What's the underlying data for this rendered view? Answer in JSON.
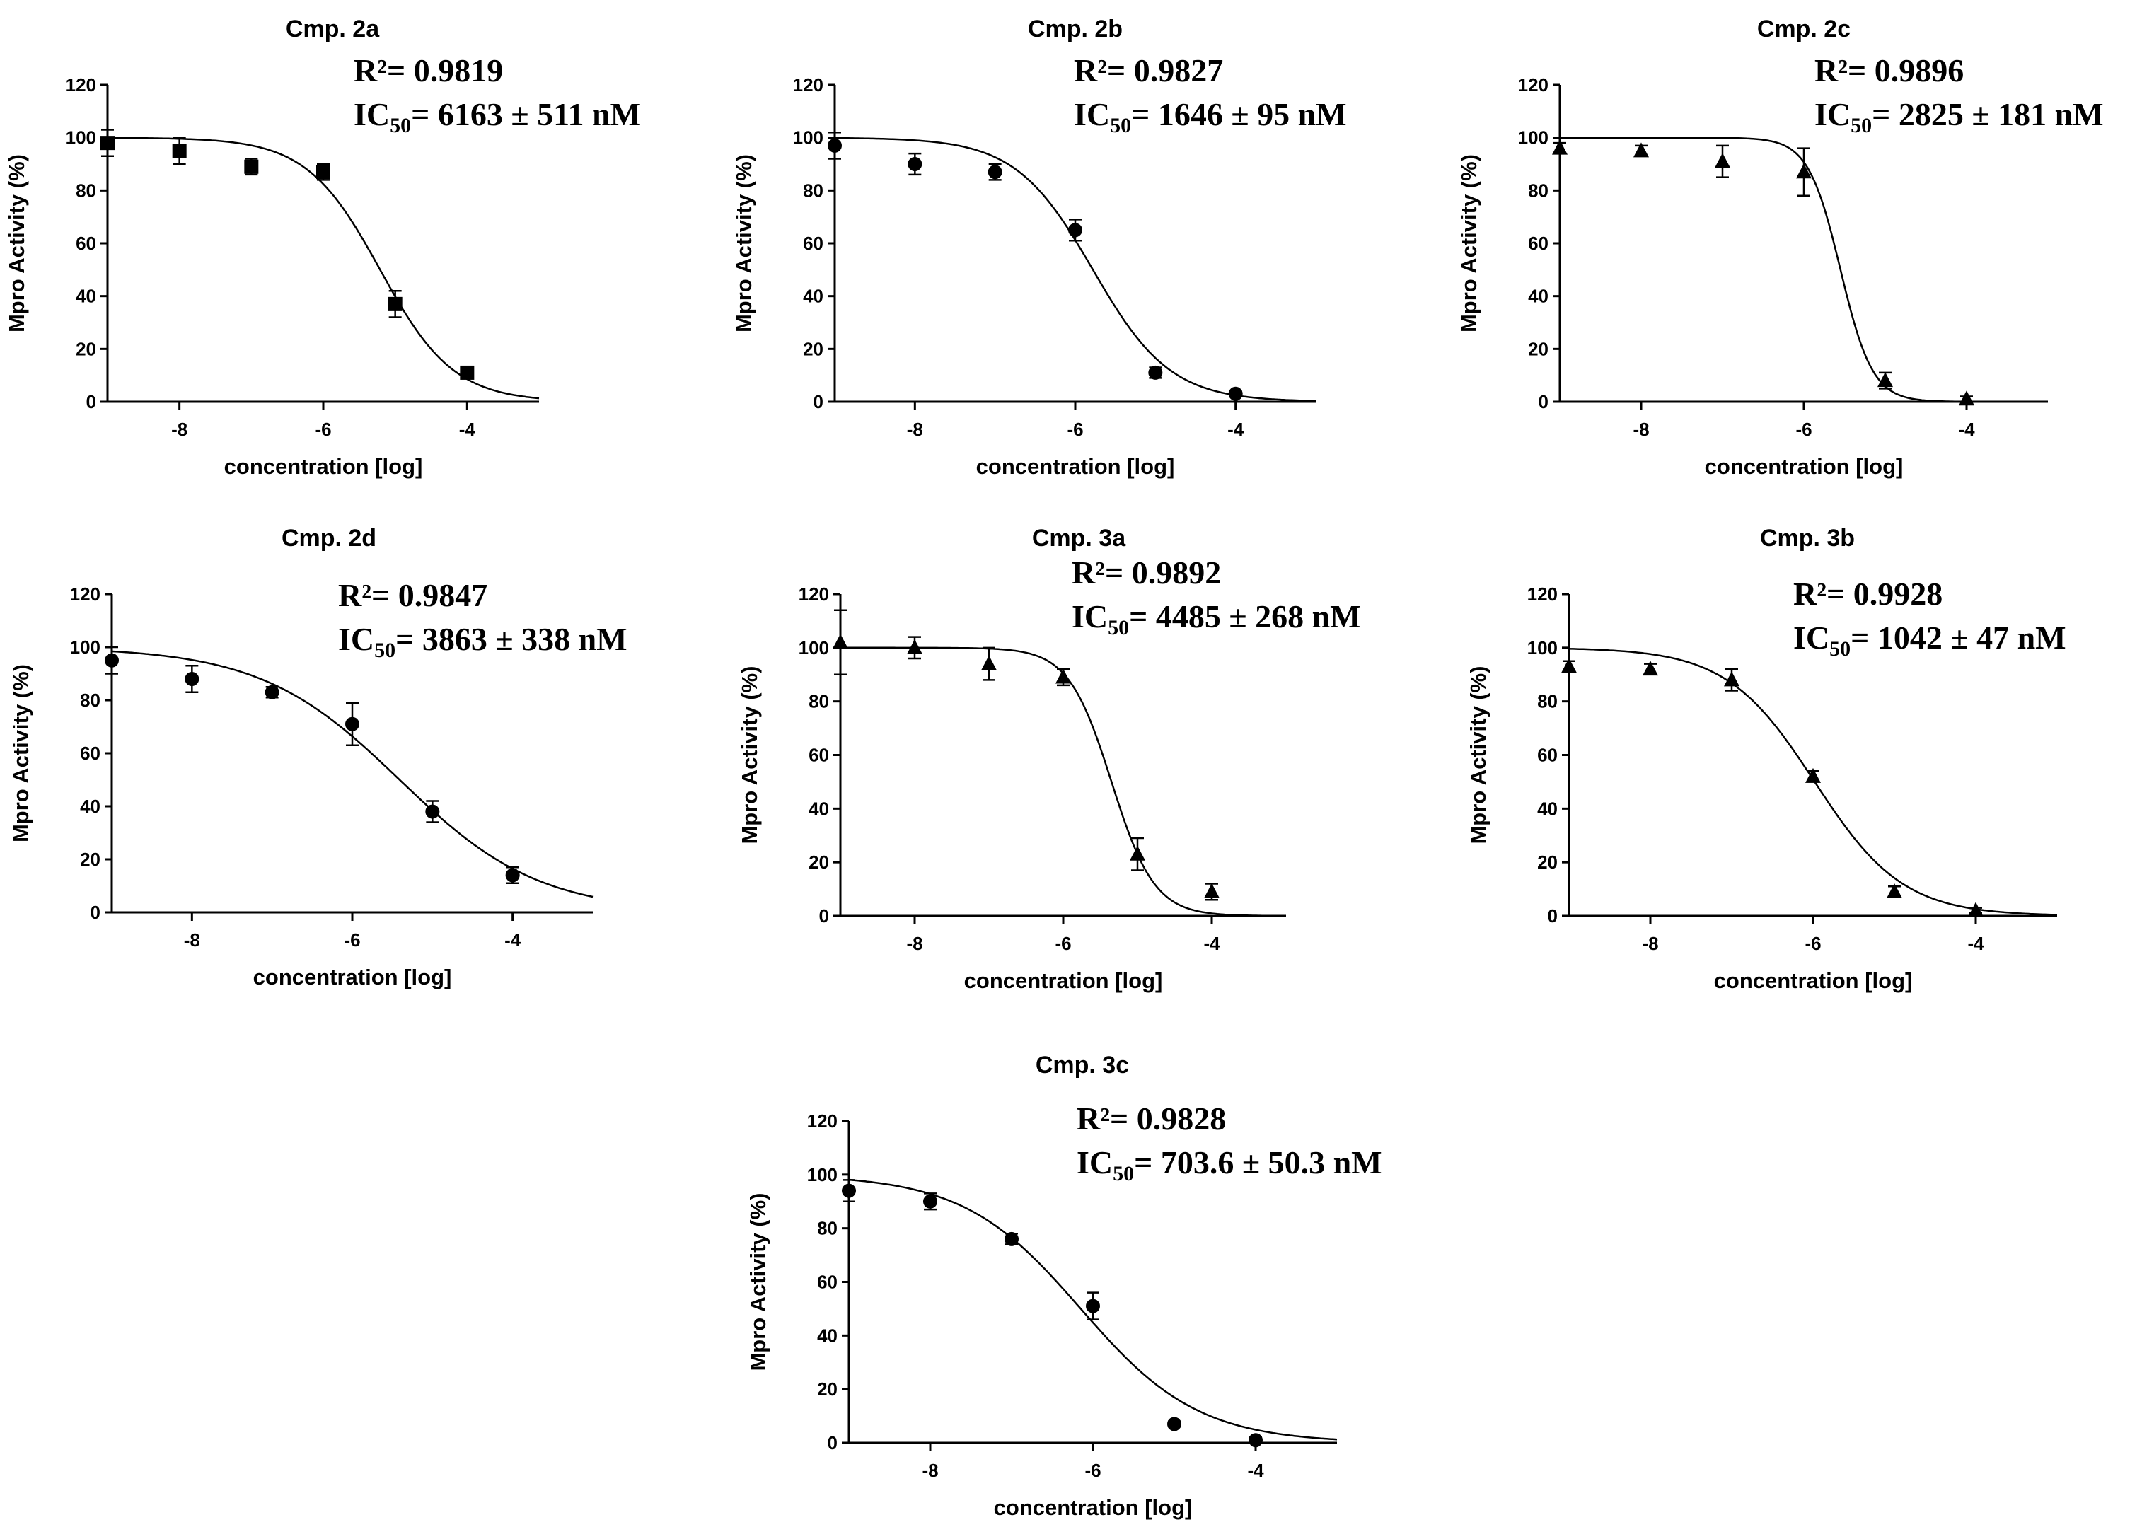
{
  "chart_data": [
    {
      "type": "scatter",
      "title": "Cmp. 2a",
      "xlabel": "concentration [log]",
      "ylabel": "Mpro Activity (%)",
      "xlim": [
        -9,
        -3
      ],
      "ylim": [
        0,
        120
      ],
      "xticks": [
        -8,
        -6,
        -4
      ],
      "yticks": [
        0,
        20,
        40,
        60,
        80,
        100,
        120
      ],
      "marker": "square",
      "r2_label": "R²= 0.9819",
      "ic50_prefix": "IC",
      "ic50_sub": "50",
      "ic50_value": "= 6163 ± 511 nM",
      "fit": {
        "top": 100,
        "bottom": 0,
        "log_ic50": -5.21,
        "hill": 0.85
      },
      "points": [
        {
          "x": -9,
          "y": 98,
          "err": 5
        },
        {
          "x": -8,
          "y": 95,
          "err": 5
        },
        {
          "x": -7,
          "y": 89,
          "err": 3
        },
        {
          "x": -6,
          "y": 87,
          "err": 3
        },
        {
          "x": -5,
          "y": 37,
          "err": 5
        },
        {
          "x": -4,
          "y": 11,
          "err": 2
        }
      ]
    },
    {
      "type": "scatter",
      "title": "Cmp. 2b",
      "xlabel": "concentration [log]",
      "ylabel": "Mpro Activity (%)",
      "xlim": [
        -9,
        -3
      ],
      "ylim": [
        0,
        120
      ],
      "xticks": [
        -8,
        -6,
        -4
      ],
      "yticks": [
        0,
        20,
        40,
        60,
        80,
        100,
        120
      ],
      "marker": "circle",
      "r2_label": "R²= 0.9827",
      "ic50_prefix": "IC",
      "ic50_sub": "50",
      "ic50_value": "= 1646 ± 95 nM",
      "fit": {
        "top": 100,
        "bottom": 0,
        "log_ic50": -5.78,
        "hill": 0.9
      },
      "points": [
        {
          "x": -9,
          "y": 97,
          "err": 5
        },
        {
          "x": -8,
          "y": 90,
          "err": 4
        },
        {
          "x": -7,
          "y": 87,
          "err": 3
        },
        {
          "x": -6,
          "y": 65,
          "err": 4
        },
        {
          "x": -5,
          "y": 11,
          "err": 2
        },
        {
          "x": -4,
          "y": 3,
          "err": 1
        }
      ]
    },
    {
      "type": "scatter",
      "title": "Cmp. 2c",
      "xlabel": "concentration [log]",
      "ylabel": "Mpro Activity (%)",
      "xlim": [
        -9,
        -3
      ],
      "ylim": [
        0,
        120
      ],
      "xticks": [
        -8,
        -6,
        -4
      ],
      "yticks": [
        0,
        20,
        40,
        60,
        80,
        100,
        120
      ],
      "marker": "triangle",
      "r2_label": "R²= 0.9896",
      "ic50_prefix": "IC",
      "ic50_sub": "50",
      "ic50_value": "= 2825 ± 181 nM",
      "fit": {
        "top": 100,
        "bottom": 0,
        "log_ic50": -5.55,
        "hill": 2.2
      },
      "points": [
        {
          "x": -9,
          "y": 96,
          "err": 2
        },
        {
          "x": -8,
          "y": 95,
          "err": 2
        },
        {
          "x": -7,
          "y": 91,
          "err": 6
        },
        {
          "x": -6,
          "y": 87,
          "err": 9
        },
        {
          "x": -5,
          "y": 8,
          "err": 3
        },
        {
          "x": -4,
          "y": 1,
          "err": 1
        }
      ]
    },
    {
      "type": "scatter",
      "title": "Cmp. 2d",
      "xlabel": "concentration [log]",
      "ylabel": "Mpro Activity (%)",
      "xlim": [
        -9,
        -3
      ],
      "ylim": [
        0,
        120
      ],
      "xticks": [
        -8,
        -6,
        -4
      ],
      "yticks": [
        0,
        20,
        40,
        60,
        80,
        100,
        120
      ],
      "marker": "circle",
      "r2_label": "R²= 0.9847",
      "ic50_prefix": "IC",
      "ic50_sub": "50",
      "ic50_value": "= 3863 ± 338 nM",
      "fit": {
        "top": 100,
        "bottom": 0,
        "log_ic50": -5.41,
        "hill": 0.5
      },
      "points": [
        {
          "x": -9,
          "y": 95,
          "err": 5
        },
        {
          "x": -8,
          "y": 88,
          "err": 5
        },
        {
          "x": -7,
          "y": 83,
          "err": 2
        },
        {
          "x": -6,
          "y": 71,
          "err": 8
        },
        {
          "x": -5,
          "y": 38,
          "err": 4
        },
        {
          "x": -4,
          "y": 14,
          "err": 3
        }
      ]
    },
    {
      "type": "scatter",
      "title": "Cmp. 3a",
      "xlabel": "concentration [log]",
      "ylabel": "Mpro Activity (%)",
      "xlim": [
        -9,
        -3
      ],
      "ylim": [
        0,
        120
      ],
      "xticks": [
        -8,
        -6,
        -4
      ],
      "yticks": [
        0,
        20,
        40,
        60,
        80,
        100,
        120
      ],
      "marker": "triangle",
      "r2_label": "R²= 0.9892",
      "ic50_prefix": "IC",
      "ic50_sub": "50",
      "ic50_value": "= 4485 ± 268 nM",
      "fit": {
        "top": 100,
        "bottom": 0,
        "log_ic50": -5.35,
        "hill": 1.5
      },
      "points": [
        {
          "x": -9,
          "y": 102,
          "err": 12
        },
        {
          "x": -8,
          "y": 100,
          "err": 4
        },
        {
          "x": -7,
          "y": 94,
          "err": 6
        },
        {
          "x": -6,
          "y": 89,
          "err": 3
        },
        {
          "x": -5,
          "y": 23,
          "err": 6
        },
        {
          "x": -4,
          "y": 9,
          "err": 3
        }
      ]
    },
    {
      "type": "scatter",
      "title": "Cmp. 3b",
      "xlabel": "concentration [log]",
      "ylabel": "Mpro Activity (%)",
      "xlim": [
        -9,
        -3
      ],
      "ylim": [
        0,
        120
      ],
      "xticks": [
        -8,
        -6,
        -4
      ],
      "yticks": [
        0,
        20,
        40,
        60,
        80,
        100,
        120
      ],
      "marker": "triangle",
      "r2_label": "R²= 0.9928",
      "ic50_prefix": "IC",
      "ic50_sub": "50",
      "ic50_value": "= 1042 ± 47 nM",
      "fit": {
        "top": 100,
        "bottom": 0,
        "log_ic50": -5.98,
        "hill": 0.8
      },
      "points": [
        {
          "x": -9,
          "y": 93,
          "err": 2
        },
        {
          "x": -8,
          "y": 92,
          "err": 2
        },
        {
          "x": -7,
          "y": 88,
          "err": 4
        },
        {
          "x": -6,
          "y": 52,
          "err": 2
        },
        {
          "x": -5,
          "y": 9,
          "err": 2
        },
        {
          "x": -4,
          "y": 2,
          "err": 1
        }
      ]
    },
    {
      "type": "scatter",
      "title": "Cmp. 3c",
      "xlabel": "concentration [log]",
      "ylabel": "Mpro Activity (%)",
      "xlim": [
        -9,
        -3
      ],
      "ylim": [
        0,
        120
      ],
      "xticks": [
        -8,
        -6,
        -4
      ],
      "yticks": [
        0,
        20,
        40,
        60,
        80,
        100,
        120
      ],
      "marker": "circle",
      "r2_label": "R²= 0.9828",
      "ic50_prefix": "IC",
      "ic50_sub": "50",
      "ic50_value": "= 703.6 ± 50.3 nM",
      "fit": {
        "top": 100,
        "bottom": 0,
        "log_ic50": -6.15,
        "hill": 0.6
      },
      "points": [
        {
          "x": -9,
          "y": 94,
          "err": 4
        },
        {
          "x": -8,
          "y": 90,
          "err": 3
        },
        {
          "x": -7,
          "y": 76,
          "err": 2
        },
        {
          "x": -6,
          "y": 51,
          "err": 5
        },
        {
          "x": -5,
          "y": 7,
          "err": 1
        },
        {
          "x": -4,
          "y": 1,
          "err": 1
        }
      ]
    }
  ]
}
